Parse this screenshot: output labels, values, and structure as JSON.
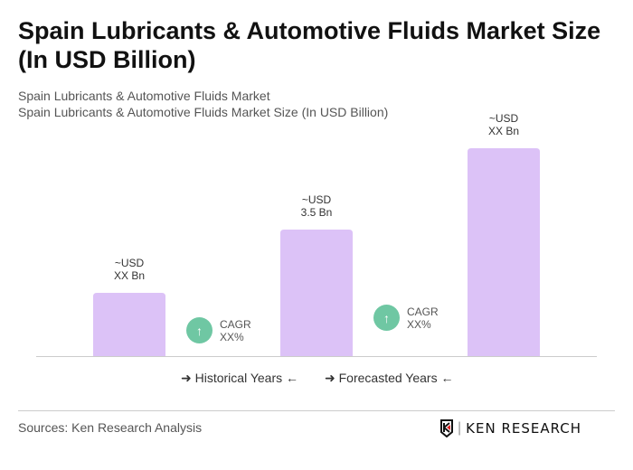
{
  "title": "Spain Lubricants & Automotive Fluids Market Size (In USD Billion)",
  "subtitle1": "Spain Lubricants & Automotive Fluids Market",
  "subtitle2": "Spain Lubricants & Automotive Fluids Market Size (In USD Billion)",
  "chart_data": {
    "type": "bar",
    "values": [
      1.75,
      3.5,
      5.75
    ],
    "data_labels": [
      [
        "~USD",
        "XX Bn"
      ],
      [
        "~USD",
        "3.5 Bn"
      ],
      [
        "~USD",
        "XX Bn"
      ]
    ],
    "bar_color": "#dcc2f7",
    "ylim": [
      0,
      6
    ]
  },
  "cagr": [
    {
      "label": "CAGR",
      "value": "XX%"
    },
    {
      "label": "CAGR",
      "value": "XX%"
    }
  ],
  "cagr_color": "#6fc7a3",
  "legend": {
    "historical": "Historical Years",
    "forecasted": "Forecasted Years"
  },
  "source": "Sources: Ken Research Analysis",
  "logo": "KEN RESEARCH"
}
